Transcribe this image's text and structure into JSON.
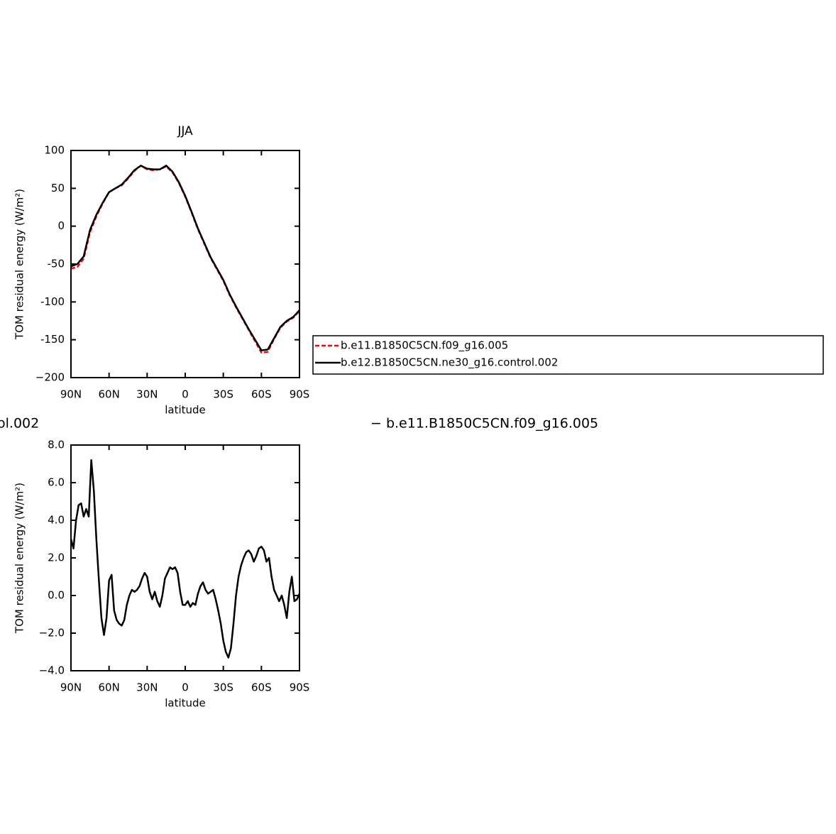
{
  "chart_data": [
    {
      "type": "line",
      "title": "JJA",
      "xlabel": "latitude",
      "ylabel": "TOM residual energy (W/m²)",
      "x": [
        90,
        85,
        80,
        75,
        70,
        65,
        60,
        55,
        50,
        45,
        40,
        35,
        30,
        25,
        20,
        15,
        10,
        5,
        0,
        -5,
        -10,
        -15,
        -20,
        -25,
        -30,
        -35,
        -40,
        -45,
        -50,
        -55,
        -60,
        -65,
        -70,
        -75,
        -80,
        -85,
        -90
      ],
      "series": [
        {
          "name": "b.e11.B1850C5CN.f09_g16.005",
          "color": "#ff0000",
          "dashed": true,
          "values": [
            -56,
            -54,
            -43,
            -8,
            13,
            30,
            45,
            50,
            54,
            63,
            73,
            80,
            75,
            74,
            75,
            79,
            71,
            57,
            39,
            18,
            -4,
            -23,
            -42,
            -57,
            -72,
            -91,
            -107,
            -122,
            -137,
            -152,
            -167,
            -166,
            -149,
            -134,
            -126,
            -121,
            -112
          ]
        },
        {
          "name": "b.e12.B1850C5CN.ne30_g16.control.002",
          "color": "#000000",
          "dashed": false,
          "values": [
            -53,
            -50,
            -40,
            -5,
            15,
            31,
            45,
            50,
            55,
            64,
            74,
            80,
            76,
            75,
            75,
            80,
            72,
            58,
            40,
            19,
            -3,
            -22,
            -41,
            -56,
            -71,
            -90,
            -106,
            -121,
            -136,
            -150,
            -164,
            -163,
            -148,
            -133,
            -125,
            -120,
            -111
          ]
        }
      ],
      "xlim": [
        90,
        -90
      ],
      "xticks": [
        {
          "value": 90,
          "label": "90N"
        },
        {
          "value": 60,
          "label": "60N"
        },
        {
          "value": 30,
          "label": "30N"
        },
        0,
        {
          "value": -30,
          "label": "30S"
        },
        {
          "value": -60,
          "label": "60S"
        },
        {
          "value": -90,
          "label": "90S"
        }
      ],
      "ylim": [
        -200,
        100
      ],
      "yticks": [
        100,
        50,
        0,
        -50,
        -100,
        -150,
        {
          "value": -200,
          "label": "−200"
        }
      ],
      "legend": true
    },
    {
      "type": "line",
      "title_left": "ol.002",
      "title_right": "− b.e11.B1850C5CN.f09_g16.005",
      "xlabel": "latitude",
      "ylabel": "TOM residual energy (W/m²)",
      "x": [
        90,
        88,
        86,
        84,
        82,
        80,
        78,
        76,
        74,
        72,
        70,
        68,
        66,
        64,
        62,
        60,
        58,
        56,
        54,
        52,
        50,
        48,
        46,
        44,
        42,
        40,
        38,
        36,
        34,
        32,
        30,
        28,
        26,
        24,
        22,
        20,
        18,
        16,
        14,
        12,
        10,
        8,
        6,
        4,
        2,
        0,
        -2,
        -4,
        -6,
        -8,
        -10,
        -12,
        -14,
        -16,
        -18,
        -20,
        -22,
        -24,
        -26,
        -28,
        -30,
        -32,
        -34,
        -36,
        -38,
        -40,
        -42,
        -44,
        -46,
        -48,
        -50,
        -52,
        -54,
        -56,
        -58,
        -60,
        -62,
        -64,
        -66,
        -68,
        -70,
        -72,
        -74,
        -76,
        -78,
        -80,
        -82,
        -84,
        -86,
        -88,
        -90
      ],
      "series": [
        {
          "name": "",
          "color": "#000000",
          "dashed": false,
          "values": [
            3.0,
            2.5,
            4.0,
            4.8,
            4.9,
            4.2,
            4.6,
            4.2,
            7.2,
            5.6,
            3.0,
            0.8,
            -1.2,
            -2.1,
            -1.2,
            0.8,
            1.1,
            -0.8,
            -1.3,
            -1.5,
            -1.6,
            -1.3,
            -0.5,
            0.0,
            0.3,
            0.2,
            0.3,
            0.5,
            0.9,
            1.2,
            1.0,
            0.2,
            -0.2,
            0.2,
            -0.3,
            -0.6,
            0.0,
            0.9,
            1.2,
            1.5,
            1.4,
            1.5,
            1.2,
            0.2,
            -0.5,
            -0.5,
            -0.3,
            -0.6,
            -0.4,
            -0.5,
            0.1,
            0.5,
            0.7,
            0.3,
            0.1,
            0.2,
            0.3,
            -0.2,
            -0.8,
            -1.5,
            -2.4,
            -3.0,
            -3.3,
            -2.8,
            -1.5,
            0.0,
            1.0,
            1.6,
            2.0,
            2.3,
            2.4,
            2.2,
            1.8,
            2.1,
            2.5,
            2.6,
            2.4,
            1.8,
            2.0,
            1.0,
            0.3,
            0.0,
            -0.3,
            0.0,
            -0.5,
            -1.2,
            0.2,
            1.0,
            -0.3,
            -0.2,
            0.1
          ]
        }
      ],
      "xlim": [
        90,
        -90
      ],
      "xticks": [
        {
          "value": 90,
          "label": "90N"
        },
        {
          "value": 60,
          "label": "60N"
        },
        {
          "value": 30,
          "label": "30N"
        },
        0,
        {
          "value": -30,
          "label": "30S"
        },
        {
          "value": -60,
          "label": "60S"
        },
        {
          "value": -90,
          "label": "90S"
        }
      ],
      "ylim": [
        -4,
        8
      ],
      "yticks": [
        {
          "value": 8,
          "label": "8.0"
        },
        {
          "value": 6,
          "label": "6.0"
        },
        {
          "value": 4,
          "label": "4.0"
        },
        {
          "value": 2,
          "label": "2.0"
        },
        {
          "value": 0,
          "label": "0.0"
        },
        {
          "value": -2,
          "label": "−2.0"
        },
        {
          "value": -4,
          "label": "−4.0"
        }
      ],
      "legend": false
    }
  ]
}
